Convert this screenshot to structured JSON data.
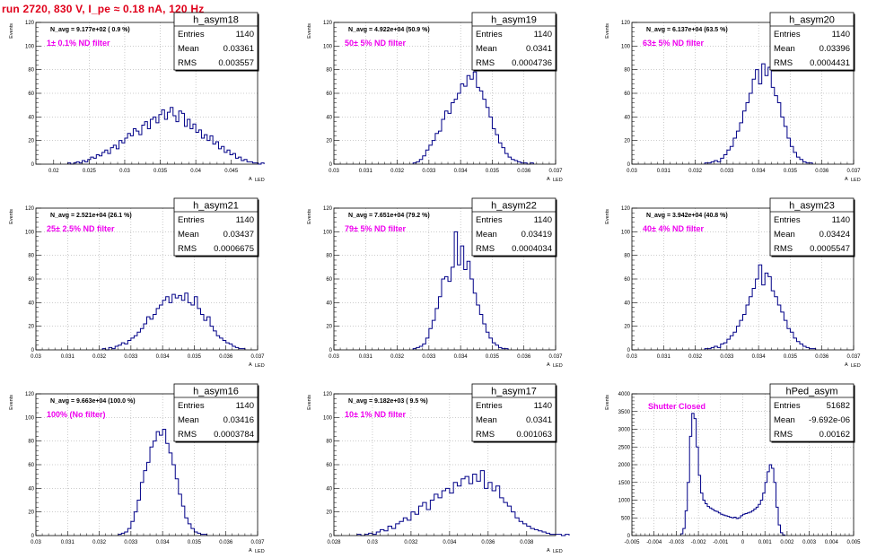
{
  "run_title": "run 2720,   830 V, I_pe ≈ 0.18 nA, 120 Hz",
  "chart_data": [
    {
      "type": "histogram",
      "name": "h_asym18",
      "stats": {
        "entries_label": "Entries",
        "entries": "1140",
        "mean_label": "Mean",
        "mean": "0.03361",
        "rms_label": "RMS",
        "rms": "0.003557"
      },
      "n_avg": "N_avg = 9.177e+02 ( 0.9 %)",
      "filter": "1± 0.1% ND filter",
      "ylabel": "Events",
      "xlabel": "A",
      "xlabel_sub": "LED",
      "xlim": [
        0.0175,
        0.0487
      ],
      "ylim": [
        0,
        120
      ],
      "xticks": [
        0.02,
        0.025,
        0.03,
        0.035,
        0.04,
        0.045
      ],
      "xtick_labels": [
        "0.02",
        "0.025",
        "0.03",
        "0.035",
        "0.04",
        "0.045"
      ],
      "yticks": [
        0,
        20,
        40,
        60,
        80,
        100,
        120
      ],
      "ytick_labels": [
        "0",
        "20",
        "40",
        "60",
        "80",
        "100",
        "120"
      ],
      "bin_start": 0.022,
      "bin_width": 0.0004,
      "counts": [
        1,
        0,
        1,
        2,
        1,
        3,
        2,
        4,
        6,
        5,
        8,
        7,
        10,
        12,
        9,
        14,
        16,
        13,
        20,
        18,
        22,
        26,
        24,
        30,
        28,
        25,
        33,
        36,
        30,
        38,
        40,
        35,
        42,
        46,
        38,
        44,
        48,
        41,
        36,
        45,
        43,
        32,
        38,
        30,
        34,
        27,
        29,
        22,
        25,
        20,
        24,
        17,
        19,
        13,
        15,
        10,
        12,
        8,
        9,
        5,
        6,
        3,
        4,
        2,
        2,
        1,
        1,
        0,
        1
      ]
    },
    {
      "type": "histogram",
      "name": "h_asym19",
      "stats": {
        "entries_label": "Entries",
        "entries": "1140",
        "mean_label": "Mean",
        "mean": "0.0341",
        "rms_label": "RMS",
        "rms": "0.0004736"
      },
      "n_avg": "N_avg = 4.922e+04 (50.9 %)",
      "filter": "50± 5% ND filter",
      "ylabel": "Events",
      "xlabel": "A",
      "xlabel_sub": "LED",
      "xlim": [
        0.03,
        0.037
      ],
      "ylim": [
        0,
        120
      ],
      "xticks": [
        0.03,
        0.031,
        0.032,
        0.033,
        0.034,
        0.035,
        0.036,
        0.037
      ],
      "xtick_labels": [
        "0.03",
        "0.031",
        "0.032",
        "0.033",
        "0.034",
        "0.035",
        "0.036",
        "0.037"
      ],
      "yticks": [
        0,
        20,
        40,
        60,
        80,
        100,
        120
      ],
      "ytick_labels": [
        "0",
        "20",
        "40",
        "60",
        "80",
        "100",
        "120"
      ],
      "bin_start": 0.0325,
      "bin_width": 0.0001,
      "counts": [
        1,
        2,
        4,
        7,
        12,
        16,
        20,
        26,
        28,
        38,
        45,
        43,
        52,
        55,
        60,
        68,
        66,
        75,
        72,
        78,
        65,
        62,
        55,
        48,
        40,
        30,
        25,
        18,
        14,
        9,
        6,
        4,
        3,
        2,
        1,
        1,
        0,
        1
      ]
    },
    {
      "type": "histogram",
      "name": "h_asym20",
      "stats": {
        "entries_label": "Entries",
        "entries": "1140",
        "mean_label": "Mean",
        "mean": "0.03396",
        "rms_label": "RMS",
        "rms": "0.0004431"
      },
      "n_avg": "N_avg = 6.137e+04 (63.5 %)",
      "filter": "63± 5% ND filter",
      "ylabel": "Events",
      "xlabel": "A",
      "xlabel_sub": "LED",
      "xlim": [
        0.03,
        0.037
      ],
      "ylim": [
        0,
        120
      ],
      "xticks": [
        0.03,
        0.031,
        0.032,
        0.033,
        0.034,
        0.035,
        0.036,
        0.037
      ],
      "xtick_labels": [
        "0.03",
        "0.031",
        "0.032",
        "0.033",
        "0.034",
        "0.035",
        "0.036",
        "0.037"
      ],
      "yticks": [
        0,
        20,
        40,
        60,
        80,
        100,
        120
      ],
      "ytick_labels": [
        "0",
        "20",
        "40",
        "60",
        "80",
        "100",
        "120"
      ],
      "bin_start": 0.0323,
      "bin_width": 0.0001,
      "counts": [
        1,
        1,
        2,
        3,
        2,
        5,
        8,
        12,
        15,
        22,
        28,
        35,
        45,
        52,
        60,
        72,
        80,
        68,
        85,
        75,
        82,
        65,
        58,
        52,
        40,
        32,
        22,
        15,
        10,
        6,
        4,
        2,
        1,
        1
      ]
    },
    {
      "type": "histogram",
      "name": "h_asym21",
      "stats": {
        "entries_label": "Entries",
        "entries": "1140",
        "mean_label": "Mean",
        "mean": "0.03437",
        "rms_label": "RMS",
        "rms": "0.0006675"
      },
      "n_avg": "N_avg = 2.521e+04 (26.1 %)",
      "filter": "25± 2.5% ND filter",
      "ylabel": "Events",
      "xlabel": "A",
      "xlabel_sub": "LED",
      "xlim": [
        0.03,
        0.037
      ],
      "ylim": [
        0,
        120
      ],
      "xticks": [
        0.03,
        0.031,
        0.032,
        0.033,
        0.034,
        0.035,
        0.036,
        0.037
      ],
      "xtick_labels": [
        "0.03",
        "0.031",
        "0.032",
        "0.033",
        "0.034",
        "0.035",
        "0.036",
        "0.037"
      ],
      "yticks": [
        0,
        20,
        40,
        60,
        80,
        100,
        120
      ],
      "ytick_labels": [
        "0",
        "20",
        "40",
        "60",
        "80",
        "100",
        "120"
      ],
      "bin_start": 0.0321,
      "bin_width": 0.0001,
      "counts": [
        1,
        0,
        2,
        1,
        3,
        4,
        6,
        5,
        8,
        10,
        12,
        15,
        18,
        22,
        28,
        26,
        30,
        35,
        38,
        42,
        45,
        40,
        47,
        44,
        46,
        42,
        48,
        40,
        38,
        45,
        35,
        30,
        25,
        28,
        20,
        16,
        12,
        10,
        8,
        6,
        5,
        3,
        2,
        1,
        1
      ]
    },
    {
      "type": "histogram",
      "name": "h_asym22",
      "stats": {
        "entries_label": "Entries",
        "entries": "1140",
        "mean_label": "Mean",
        "mean": "0.03419",
        "rms_label": "RMS",
        "rms": "0.0004034"
      },
      "n_avg": "N_avg = 7.651e+04 (79.2 %)",
      "filter": "79± 5% ND filter",
      "ylabel": "Events",
      "xlabel": "A",
      "xlabel_sub": "LED",
      "xlim": [
        0.03,
        0.037
      ],
      "ylim": [
        0,
        120
      ],
      "xticks": [
        0.03,
        0.031,
        0.032,
        0.033,
        0.034,
        0.035,
        0.036,
        0.037
      ],
      "xtick_labels": [
        "0.03",
        "0.031",
        "0.032",
        "0.033",
        "0.034",
        "0.035",
        "0.036",
        "0.037"
      ],
      "yticks": [
        0,
        20,
        40,
        60,
        80,
        100,
        120
      ],
      "ytick_labels": [
        "0",
        "20",
        "40",
        "60",
        "80",
        "100",
        "120"
      ],
      "bin_start": 0.0325,
      "bin_width": 0.0001,
      "counts": [
        1,
        2,
        3,
        5,
        10,
        18,
        25,
        35,
        45,
        60,
        62,
        58,
        70,
        100,
        72,
        88,
        68,
        75,
        60,
        48,
        38,
        30,
        22,
        15,
        10,
        6,
        4,
        2,
        1,
        1
      ]
    },
    {
      "type": "histogram",
      "name": "h_asym23",
      "stats": {
        "entries_label": "Entries",
        "entries": "1140",
        "mean_label": "Mean",
        "mean": "0.03424",
        "rms_label": "RMS",
        "rms": "0.0005547"
      },
      "n_avg": "N_avg = 3.942e+04 (40.8 %)",
      "filter": "40± 4% ND filter",
      "ylabel": "Events",
      "xlabel": "A",
      "xlabel_sub": "LED",
      "xlim": [
        0.03,
        0.037
      ],
      "ylim": [
        0,
        120
      ],
      "xticks": [
        0.03,
        0.031,
        0.032,
        0.033,
        0.034,
        0.035,
        0.036,
        0.037
      ],
      "xtick_labels": [
        "0.03",
        "0.031",
        "0.032",
        "0.033",
        "0.034",
        "0.035",
        "0.036",
        "0.037"
      ],
      "yticks": [
        0,
        20,
        40,
        60,
        80,
        100,
        120
      ],
      "ytick_labels": [
        "0",
        "20",
        "40",
        "60",
        "80",
        "100",
        "120"
      ],
      "bin_start": 0.0323,
      "bin_width": 0.0001,
      "counts": [
        1,
        1,
        2,
        3,
        2,
        5,
        6,
        9,
        12,
        15,
        20,
        25,
        30,
        38,
        45,
        52,
        60,
        72,
        55,
        65,
        62,
        50,
        45,
        38,
        32,
        25,
        18,
        15,
        10,
        7,
        5,
        3,
        2,
        1,
        1
      ]
    },
    {
      "type": "histogram",
      "name": "h_asym16",
      "stats": {
        "entries_label": "Entries",
        "entries": "1140",
        "mean_label": "Mean",
        "mean": "0.03416",
        "rms_label": "RMS",
        "rms": "0.0003784"
      },
      "n_avg": "N_avg = 9.663e+04 (100.0 %)",
      "filter": "100% (No filter)",
      "ylabel": "Events",
      "xlabel": "A",
      "xlabel_sub": "LED",
      "xlim": [
        0.03,
        0.037
      ],
      "ylim": [
        0,
        120
      ],
      "xticks": [
        0.03,
        0.031,
        0.032,
        0.033,
        0.034,
        0.035,
        0.036,
        0.037
      ],
      "xtick_labels": [
        "0.03",
        "0.031",
        "0.032",
        "0.033",
        "0.034",
        "0.035",
        "0.036",
        "0.037"
      ],
      "yticks": [
        0,
        20,
        40,
        60,
        80,
        100,
        120
      ],
      "ytick_labels": [
        "0",
        "20",
        "40",
        "60",
        "80",
        "100",
        "120"
      ],
      "bin_start": 0.0326,
      "bin_width": 0.0001,
      "counts": [
        1,
        2,
        3,
        6,
        12,
        20,
        30,
        45,
        55,
        62,
        75,
        80,
        88,
        85,
        90,
        78,
        70,
        60,
        48,
        35,
        25,
        15,
        10,
        6,
        3,
        2,
        1,
        1
      ]
    },
    {
      "type": "histogram",
      "name": "h_asym17",
      "stats": {
        "entries_label": "Entries",
        "entries": "1140",
        "mean_label": "Mean",
        "mean": "0.0341",
        "rms_label": "RMS",
        "rms": "0.001063"
      },
      "n_avg": "N_avg = 9.182e+03 ( 9.5 %)",
      "filter": "10± 1% ND filter",
      "ylabel": "Events",
      "xlabel": "A",
      "xlabel_sub": "LED",
      "xlim": [
        0.028,
        0.0395
      ],
      "ylim": [
        0,
        120
      ],
      "xticks": [
        0.028,
        0.03,
        0.032,
        0.034,
        0.036,
        0.038
      ],
      "xtick_labels": [
        "0.028",
        "0.03",
        "0.032",
        "0.034",
        "0.036",
        "0.038"
      ],
      "yticks": [
        0,
        20,
        40,
        60,
        80,
        100,
        120
      ],
      "ytick_labels": [
        "0",
        "20",
        "40",
        "60",
        "80",
        "100",
        "120"
      ],
      "bin_start": 0.0292,
      "bin_width": 0.0002,
      "counts": [
        1,
        0,
        1,
        2,
        1,
        3,
        5,
        4,
        8,
        6,
        10,
        12,
        15,
        13,
        20,
        18,
        25,
        28,
        22,
        30,
        35,
        32,
        38,
        40,
        36,
        45,
        42,
        48,
        50,
        44,
        52,
        46,
        55,
        40,
        45,
        38,
        42,
        32,
        28,
        25,
        20,
        15,
        12,
        10,
        8,
        6,
        5,
        4,
        3,
        2,
        1,
        1,
        1,
        0,
        1
      ]
    },
    {
      "type": "histogram",
      "name": "hPed_asym",
      "stats": {
        "entries_label": "Entries",
        "entries": "51682",
        "mean_label": "Mean",
        "mean": "-9.692e-06",
        "rms_label": "RMS",
        "rms": "0.00162"
      },
      "n_avg": "",
      "filter": "Shutter Closed",
      "ylabel": "Events",
      "xlabel": "",
      "xlabel_sub": "",
      "xlim": [
        -0.005,
        0.005
      ],
      "ylim": [
        0,
        4000
      ],
      "xticks": [
        -0.005,
        -0.004,
        -0.003,
        -0.002,
        -0.001,
        0,
        0.001,
        0.002,
        0.003,
        0.004,
        0.005
      ],
      "xtick_labels": [
        "-0.005",
        "-0.004",
        "-0.003",
        "-0.002",
        "-0.001",
        "0",
        "0.001",
        "0.002",
        "0.003",
        "0.004",
        "0.005"
      ],
      "yticks": [
        0,
        500,
        1000,
        1500,
        2000,
        2500,
        3000,
        3500,
        4000
      ],
      "ytick_labels": [
        "0",
        "500",
        "1000",
        "1500",
        "2000",
        "2500",
        "3000",
        "3500",
        "4000"
      ],
      "bin_start": -0.0028,
      "bin_width": 0.0001,
      "counts": [
        50,
        200,
        700,
        1500,
        2800,
        3450,
        3300,
        2500,
        1700,
        1200,
        1000,
        900,
        820,
        780,
        740,
        700,
        680,
        640,
        600,
        580,
        560,
        540,
        520,
        500,
        520,
        480,
        500,
        560,
        600,
        620,
        640,
        660,
        700,
        750,
        800,
        880,
        1000,
        1200,
        1500,
        1800,
        2000,
        1900,
        1500,
        800,
        300,
        80,
        20
      ]
    }
  ]
}
